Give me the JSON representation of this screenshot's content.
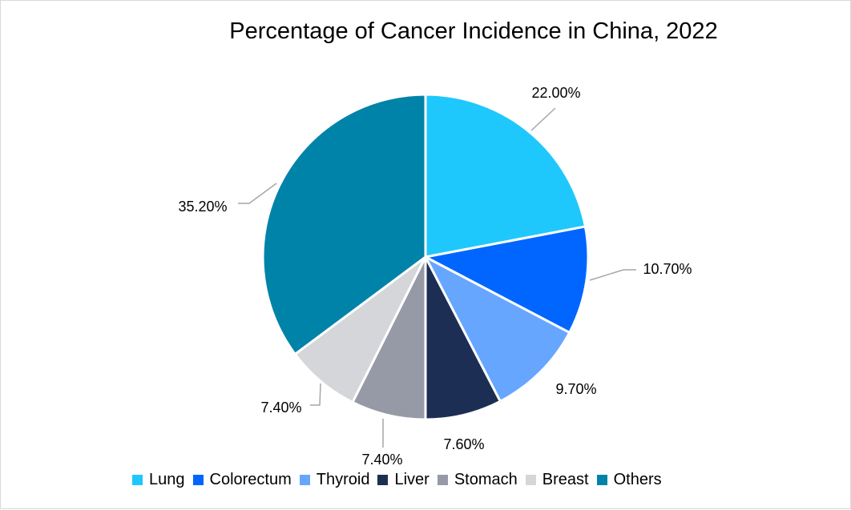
{
  "chart_data": {
    "type": "pie",
    "title": "Percentage of Cancer Incidence in China, 2022",
    "categories": [
      "Lung",
      "Colorectum",
      "Thyroid",
      "Liver",
      "Stomach",
      "Breast",
      "Others"
    ],
    "values": [
      22.0,
      10.7,
      9.7,
      7.6,
      7.4,
      7.4,
      35.2
    ],
    "data_labels": [
      "22.00%",
      "10.70%",
      "9.70%",
      "7.60%",
      "7.40%",
      "7.40%",
      "35.20%"
    ],
    "colors": [
      "#1fc8fc",
      "#0066ff",
      "#66a6ff",
      "#1c2e54",
      "#959aa6",
      "#d4d6da",
      "#0083a8"
    ],
    "legend_position": "bottom"
  }
}
